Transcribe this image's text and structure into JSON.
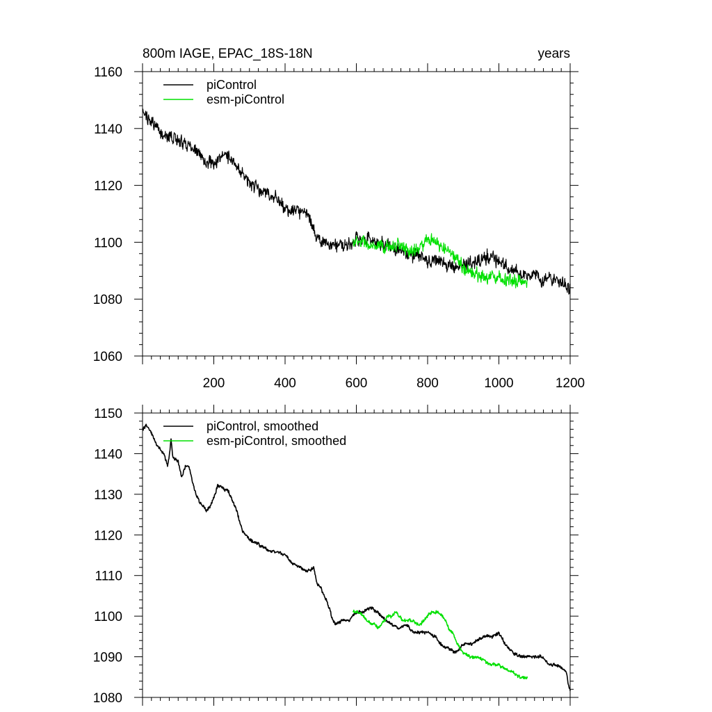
{
  "figure": {
    "title_left": "800m IAGE, EPAC_18S-18N",
    "title_right": "years"
  },
  "colors": {
    "piControl": "#000000",
    "esm_piControl": "#00e000"
  },
  "chart_data": [
    {
      "type": "line",
      "title": "800m IAGE, EPAC_18S-18N",
      "units_label": "years",
      "xlim": [
        0,
        1200
      ],
      "ylim": [
        1060,
        1160
      ],
      "x_ticks": [
        200,
        400,
        600,
        800,
        1000,
        1200
      ],
      "y_ticks": [
        1060,
        1080,
        1100,
        1120,
        1140,
        1160
      ],
      "legend": [
        "piControl",
        "esm-piControl"
      ],
      "legend_position": "top-left",
      "series": [
        {
          "name": "piControl",
          "x_range": [
            1,
            1200
          ],
          "noise_amplitude": 4,
          "anchors": [
            [
              0,
              1146
            ],
            [
              20,
              1143
            ],
            [
              50,
              1139
            ],
            [
              80,
              1137
            ],
            [
              100,
              1136
            ],
            [
              130,
              1134
            ],
            [
              150,
              1132
            ],
            [
              170,
              1130
            ],
            [
              190,
              1128
            ],
            [
              200,
              1128
            ],
            [
              220,
              1130
            ],
            [
              250,
              1130
            ],
            [
              270,
              1126
            ],
            [
              300,
              1121
            ],
            [
              330,
              1118
            ],
            [
              350,
              1117
            ],
            [
              380,
              1115
            ],
            [
              400,
              1112
            ],
            [
              430,
              1111
            ],
            [
              460,
              1110
            ],
            [
              480,
              1105
            ],
            [
              500,
              1100
            ],
            [
              530,
              1099
            ],
            [
              560,
              1099
            ],
            [
              580,
              1099
            ],
            [
              600,
              1101
            ],
            [
              630,
              1101
            ],
            [
              650,
              1100
            ],
            [
              680,
              1099
            ],
            [
              700,
              1098
            ],
            [
              730,
              1097
            ],
            [
              750,
              1096
            ],
            [
              780,
              1095
            ],
            [
              800,
              1094
            ],
            [
              830,
              1094
            ],
            [
              850,
              1092
            ],
            [
              880,
              1091
            ],
            [
              900,
              1092
            ],
            [
              930,
              1093
            ],
            [
              960,
              1095
            ],
            [
              980,
              1095
            ],
            [
              1000,
              1093
            ],
            [
              1030,
              1090
            ],
            [
              1050,
              1090
            ],
            [
              1070,
              1088
            ],
            [
              1100,
              1089
            ],
            [
              1120,
              1087
            ],
            [
              1150,
              1087
            ],
            [
              1180,
              1086
            ],
            [
              1195,
              1083
            ],
            [
              1200,
              1083
            ]
          ]
        },
        {
          "name": "esm-piControl",
          "x_range": [
            590,
            1080
          ],
          "noise_amplitude": 4,
          "anchors": [
            [
              590,
              1100
            ],
            [
              620,
              1100
            ],
            [
              650,
              1098
            ],
            [
              680,
              1098
            ],
            [
              700,
              1099
            ],
            [
              720,
              1099
            ],
            [
              750,
              1097
            ],
            [
              780,
              1098
            ],
            [
              800,
              1101
            ],
            [
              820,
              1100
            ],
            [
              840,
              1098
            ],
            [
              860,
              1097
            ],
            [
              880,
              1094
            ],
            [
              900,
              1091
            ],
            [
              930,
              1089
            ],
            [
              960,
              1088
            ],
            [
              990,
              1088
            ],
            [
              1020,
              1087
            ],
            [
              1050,
              1086
            ],
            [
              1080,
              1086
            ]
          ]
        }
      ]
    },
    {
      "type": "line",
      "title": "",
      "xlim": [
        0,
        1200
      ],
      "ylim": [
        1080,
        1150
      ],
      "x_ticks": [
        200,
        400,
        600,
        800,
        1000,
        1200
      ],
      "y_ticks": [
        1080,
        1090,
        1100,
        1110,
        1120,
        1130,
        1140,
        1150
      ],
      "legend": [
        "piControl, smoothed",
        "esm-piControl, smoothed"
      ],
      "legend_position": "top-left",
      "series": [
        {
          "name": "piControl, smoothed",
          "x_range": [
            1,
            1200
          ],
          "noise_amplitude": 0.7,
          "anchors": [
            [
              0,
              1146
            ],
            [
              10,
              1147
            ],
            [
              20,
              1146
            ],
            [
              40,
              1142
            ],
            [
              60,
              1140
            ],
            [
              70,
              1137
            ],
            [
              75,
              1139
            ],
            [
              80,
              1144
            ],
            [
              85,
              1139
            ],
            [
              100,
              1138
            ],
            [
              110,
              1134
            ],
            [
              120,
              1137
            ],
            [
              130,
              1137
            ],
            [
              140,
              1133
            ],
            [
              150,
              1130
            ],
            [
              160,
              1128
            ],
            [
              170,
              1127
            ],
            [
              180,
              1126
            ],
            [
              190,
              1127
            ],
            [
              200,
              1129
            ],
            [
              210,
              1132
            ],
            [
              220,
              1132
            ],
            [
              230,
              1131
            ],
            [
              240,
              1131
            ],
            [
              250,
              1129
            ],
            [
              260,
              1127
            ],
            [
              270,
              1124
            ],
            [
              280,
              1121
            ],
            [
              290,
              1120
            ],
            [
              300,
              1119
            ],
            [
              320,
              1118
            ],
            [
              340,
              1117
            ],
            [
              360,
              1116
            ],
            [
              380,
              1116
            ],
            [
              400,
              1115
            ],
            [
              420,
              1113
            ],
            [
              440,
              1112
            ],
            [
              460,
              1111
            ],
            [
              480,
              1112
            ],
            [
              490,
              1108
            ],
            [
              500,
              1107
            ],
            [
              510,
              1105
            ],
            [
              520,
              1103
            ],
            [
              530,
              1100
            ],
            [
              540,
              1098
            ],
            [
              560,
              1099
            ],
            [
              580,
              1099
            ],
            [
              600,
              1101
            ],
            [
              620,
              1101
            ],
            [
              640,
              1102
            ],
            [
              660,
              1101
            ],
            [
              680,
              1099
            ],
            [
              700,
              1098
            ],
            [
              720,
              1097
            ],
            [
              740,
              1098
            ],
            [
              760,
              1096
            ],
            [
              780,
              1096
            ],
            [
              800,
              1096
            ],
            [
              820,
              1095
            ],
            [
              840,
              1093
            ],
            [
              860,
              1092
            ],
            [
              880,
              1091
            ],
            [
              900,
              1093
            ],
            [
              920,
              1093
            ],
            [
              940,
              1094
            ],
            [
              960,
              1095
            ],
            [
              980,
              1095
            ],
            [
              1000,
              1096
            ],
            [
              1020,
              1093
            ],
            [
              1040,
              1091
            ],
            [
              1060,
              1090
            ],
            [
              1080,
              1090
            ],
            [
              1100,
              1090
            ],
            [
              1120,
              1090
            ],
            [
              1140,
              1088
            ],
            [
              1160,
              1088
            ],
            [
              1180,
              1087
            ],
            [
              1190,
              1086
            ],
            [
              1195,
              1083
            ],
            [
              1200,
              1082
            ]
          ]
        },
        {
          "name": "esm-piControl, smoothed",
          "x_range": [
            590,
            1080
          ],
          "noise_amplitude": 0.7,
          "anchors": [
            [
              590,
              1101
            ],
            [
              600,
              1101
            ],
            [
              610,
              1101
            ],
            [
              620,
              1100
            ],
            [
              630,
              1099
            ],
            [
              640,
              1098
            ],
            [
              650,
              1098
            ],
            [
              660,
              1097
            ],
            [
              670,
              1098
            ],
            [
              680,
              1099
            ],
            [
              690,
              1100
            ],
            [
              700,
              1100
            ],
            [
              710,
              1101
            ],
            [
              720,
              1100
            ],
            [
              730,
              1099
            ],
            [
              740,
              1099
            ],
            [
              750,
              1099
            ],
            [
              760,
              1099
            ],
            [
              770,
              1098
            ],
            [
              780,
              1098
            ],
            [
              790,
              1099
            ],
            [
              800,
              1100
            ],
            [
              810,
              1101
            ],
            [
              820,
              1101
            ],
            [
              830,
              1101
            ],
            [
              840,
              1100
            ],
            [
              850,
              1099
            ],
            [
              860,
              1097
            ],
            [
              870,
              1096
            ],
            [
              880,
              1094
            ],
            [
              890,
              1092
            ],
            [
              900,
              1091
            ],
            [
              920,
              1090
            ],
            [
              940,
              1090
            ],
            [
              960,
              1089
            ],
            [
              980,
              1088
            ],
            [
              1000,
              1088
            ],
            [
              1020,
              1087
            ],
            [
              1040,
              1086
            ],
            [
              1060,
              1085
            ],
            [
              1080,
              1085
            ]
          ]
        }
      ]
    }
  ]
}
